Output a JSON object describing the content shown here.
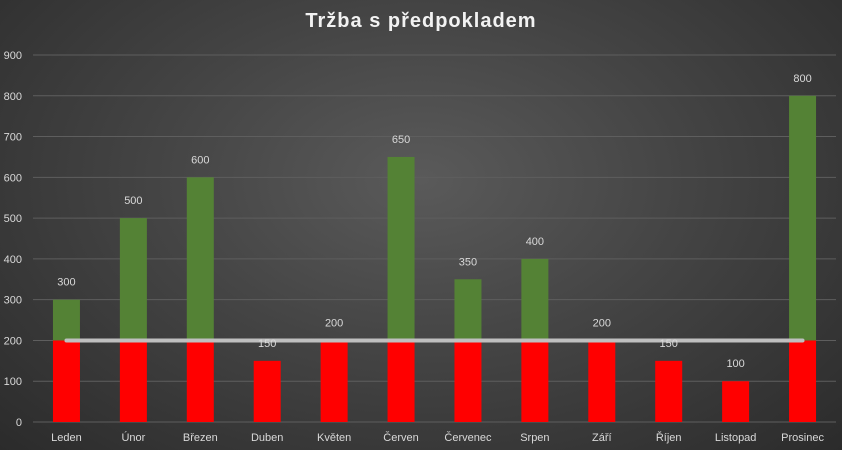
{
  "chart_data": {
    "type": "bar",
    "title": "Tržba s předpokladem",
    "categories": [
      "Leden",
      "Únor",
      "Březen",
      "Duben",
      "Květen",
      "Červen",
      "Červenec",
      "Srpen",
      "Září",
      "Říjen",
      "Listopad",
      "Prosinec"
    ],
    "values": [
      300,
      500,
      600,
      150,
      200,
      650,
      350,
      400,
      200,
      150,
      100,
      800
    ],
    "threshold": 200,
    "ylim": [
      0,
      900
    ],
    "yticks": [
      0,
      100,
      200,
      300,
      400,
      500,
      600,
      700,
      800,
      900
    ],
    "xlabel": "",
    "ylabel": "",
    "grid": true,
    "legend": "none",
    "colors": {
      "below_threshold": "#ff0000",
      "above_threshold": "#548235",
      "threshold_line": "#bfbfbf",
      "gridline": "#5e5e5e"
    }
  }
}
